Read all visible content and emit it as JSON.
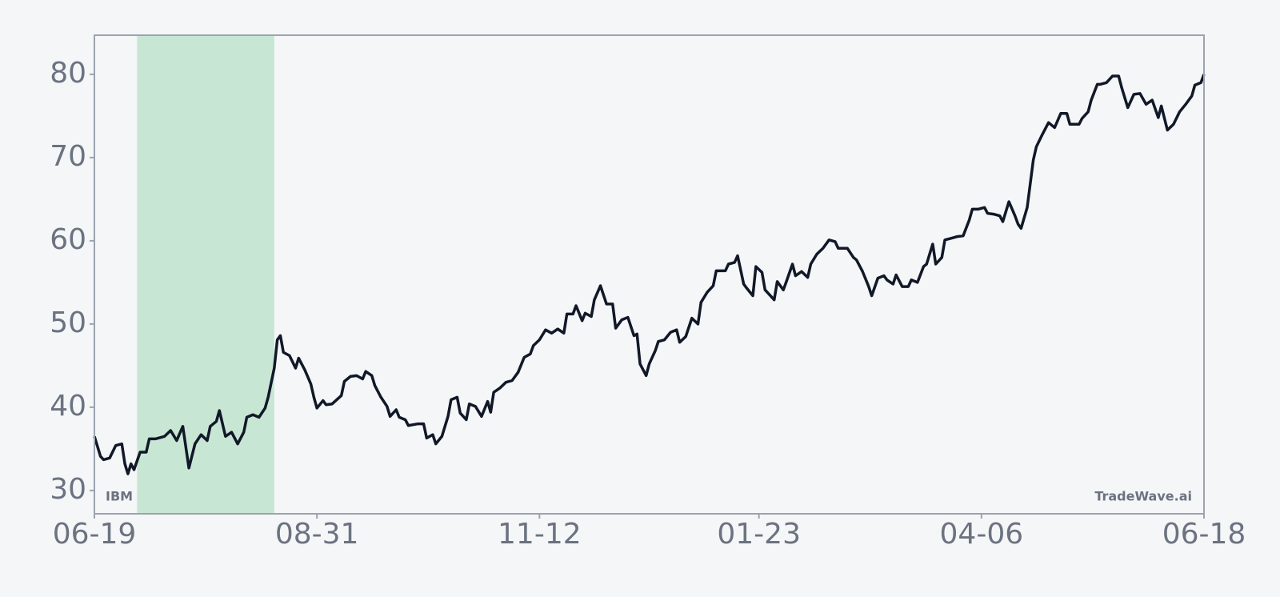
{
  "chart_data": {
    "type": "line",
    "watermark": "TradeWave.ai",
    "x": [
      0,
      2,
      3,
      5,
      7,
      9,
      10,
      11,
      12,
      13,
      15,
      17,
      18,
      20,
      23,
      25,
      27,
      29,
      31,
      33,
      35,
      37,
      38,
      40,
      41,
      43,
      45,
      47,
      49,
      50,
      52,
      54,
      56,
      57,
      59,
      60,
      61,
      62,
      64,
      66,
      67,
      69,
      71,
      72,
      73,
      75,
      76,
      78,
      81,
      82,
      84,
      86,
      88,
      89,
      91,
      92,
      94,
      96,
      97,
      99,
      100,
      102,
      103,
      106,
      108,
      109,
      111,
      112,
      114,
      116,
      117,
      119,
      120,
      122,
      123,
      125,
      127,
      129,
      130,
      131,
      133,
      135,
      137,
      139,
      141,
      143,
      144,
      146,
      148,
      150,
      152,
      154,
      155,
      157,
      158,
      160,
      161,
      163,
      164,
      166,
      168,
      170,
      171,
      173,
      175,
      177,
      178,
      179,
      181,
      182,
      184,
      185,
      187,
      189,
      191,
      192,
      194,
      196,
      198,
      199,
      201,
      203,
      204,
      207,
      208,
      210,
      211,
      213,
      214,
      216,
      217,
      219,
      220,
      223,
      224,
      226,
      227,
      229,
      230,
      232,
      234,
      235,
      237,
      239,
      241,
      243,
      244,
      247,
      249,
      250,
      252,
      254,
      255,
      257,
      259,
      260,
      262,
      263,
      265,
      267,
      268,
      270,
      272,
      273,
      275,
      276,
      278,
      279,
      281,
      283,
      285,
      287,
      288,
      290,
      292,
      293,
      295,
      297,
      298,
      300,
      302,
      303,
      304,
      306,
      308,
      309,
      311,
      313,
      315,
      317,
      319,
      320,
      323,
      324,
      326,
      327,
      329,
      330,
      332,
      334,
      336,
      337,
      339,
      341,
      343,
      345,
      347,
      349,
      350,
      352,
      354,
      356,
      358,
      360,
      361,
      363,
      364
    ],
    "series": [
      {
        "name": "IBM",
        "color": "#111827",
        "values": [
          36.5,
          34.1,
          33.7,
          33.9,
          35.4,
          35.6,
          33.2,
          32.0,
          33.2,
          32.5,
          34.6,
          34.6,
          36.2,
          36.2,
          36.5,
          37.2,
          36.0,
          37.7,
          32.7,
          35.6,
          36.7,
          36.0,
          37.7,
          38.3,
          39.6,
          36.5,
          37.0,
          35.6,
          37.0,
          38.8,
          39.1,
          38.8,
          39.9,
          41.2,
          44.7,
          48.1,
          48.6,
          46.6,
          46.2,
          44.7,
          45.9,
          44.5,
          42.8,
          41.2,
          39.9,
          40.8,
          40.3,
          40.4,
          41.4,
          43.1,
          43.7,
          43.8,
          43.4,
          44.3,
          43.8,
          42.6,
          41.2,
          40.1,
          38.9,
          39.7,
          38.8,
          38.5,
          37.8,
          38.0,
          38.0,
          36.3,
          36.7,
          35.6,
          36.5,
          38.9,
          40.9,
          41.2,
          39.3,
          38.5,
          40.4,
          40.1,
          38.9,
          40.7,
          39.4,
          41.8,
          42.3,
          43.0,
          43.2,
          44.2,
          46.0,
          46.4,
          47.4,
          48.1,
          49.3,
          48.9,
          49.4,
          48.9,
          51.2,
          51.2,
          52.2,
          50.4,
          51.3,
          50.9,
          52.9,
          54.6,
          52.4,
          52.4,
          49.5,
          50.5,
          50.8,
          48.6,
          48.8,
          45.2,
          43.8,
          45.2,
          46.8,
          47.9,
          48.1,
          49.0,
          49.3,
          47.8,
          48.5,
          50.7,
          50.0,
          52.6,
          53.8,
          54.6,
          56.4,
          56.4,
          57.2,
          57.4,
          58.2,
          54.8,
          54.3,
          53.4,
          56.9,
          56.2,
          54.1,
          52.9,
          55.1,
          54.1,
          55.1,
          57.2,
          55.8,
          56.3,
          55.6,
          57.2,
          58.4,
          59.1,
          60.1,
          59.9,
          59.1,
          59.1,
          58.0,
          57.7,
          56.3,
          54.5,
          53.4,
          55.5,
          55.8,
          55.3,
          54.8,
          55.9,
          54.5,
          54.5,
          55.3,
          55.0,
          56.9,
          57.2,
          59.6,
          57.2,
          58.0,
          60.1,
          60.3,
          60.5,
          60.6,
          62.5,
          63.8,
          63.8,
          64.0,
          63.3,
          63.2,
          63.0,
          62.3,
          64.7,
          63.0,
          62.0,
          61.5,
          64.0,
          69.7,
          71.3,
          72.8,
          74.2,
          73.6,
          75.3,
          75.3,
          74.0,
          74.0,
          74.7,
          75.5,
          76.9,
          78.8,
          78.8,
          79.0,
          79.8,
          79.8,
          78.4,
          76.0,
          77.6,
          77.7,
          76.4,
          76.9,
          74.8,
          76.2,
          73.3,
          74.0,
          75.5,
          76.4,
          77.4,
          78.7,
          79.0,
          80.0
        ]
      }
    ],
    "highlight": {
      "start": 14,
      "end": 59,
      "color": "#c8e6d4"
    },
    "xlim": [
      0,
      364
    ],
    "xticks": [
      {
        "value": 0,
        "label": "06-19"
      },
      {
        "value": 73,
        "label": "08-31"
      },
      {
        "value": 146,
        "label": "11-12"
      },
      {
        "value": 218,
        "label": "01-23"
      },
      {
        "value": 291,
        "label": "04-06"
      },
      {
        "value": 364,
        "label": "06-18"
      }
    ],
    "ylim": [
      27.2,
      84.7
    ],
    "yticks": [
      30,
      40,
      50,
      60,
      70,
      80
    ],
    "grid": false
  }
}
